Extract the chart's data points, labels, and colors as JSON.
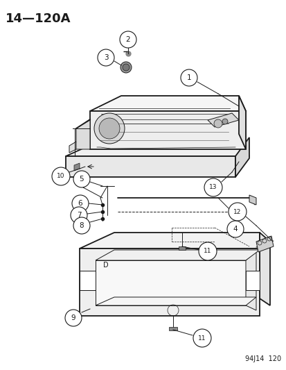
{
  "title": "14—120A",
  "bg_color": "#ffffff",
  "line_color": "#1a1a1a",
  "footer": "94J14  120",
  "lw_main": 1.3,
  "lw_thin": 0.7,
  "lw_light": 0.5
}
